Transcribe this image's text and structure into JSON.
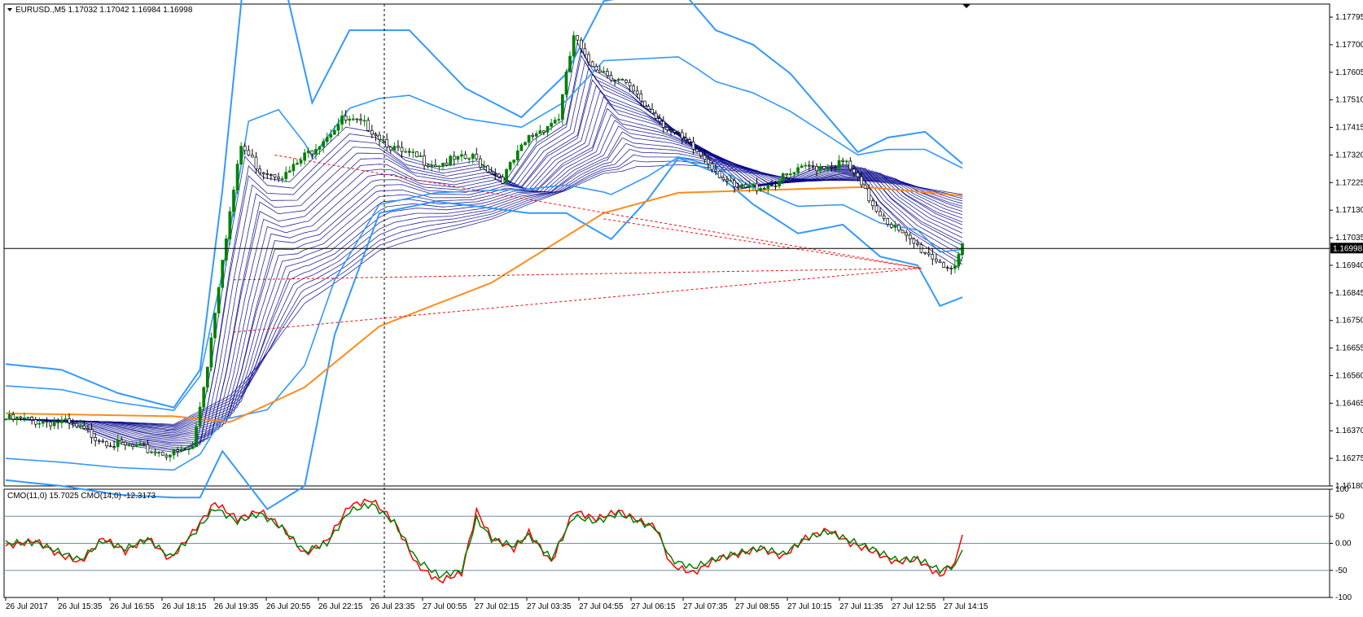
{
  "window": {
    "header": "EURUSD.,M5  1.17032 1.17042 1.16984 1.16998",
    "sub_header": "CMO(11,0) 15.7025  CMO(14,0) -12.3173"
  },
  "colors": {
    "background": "#ffffff",
    "grid_frame": "#000000",
    "bollinger": "#3399ff",
    "ribbon": "#00008b",
    "slow_ma": "#ff8c1a",
    "candle_up": "#008000",
    "candle_down": "#000000",
    "cmo_fast": "#ff0000",
    "cmo_slow": "#008000",
    "level_line": "#6b8fb3",
    "trend_dashed": "#ff0000",
    "price_tag_bg": "#000000",
    "price_tag_fg": "#ffffff"
  },
  "chart_data": [
    {
      "type": "candlestick",
      "symbol": "EURUSD.",
      "timeframe": "M5",
      "ohlc_last": {
        "open": 1.17032,
        "high": 1.17042,
        "low": 1.16984,
        "close": 1.16998
      },
      "current_price_label": "1.16998",
      "ylim": [
        1.1618,
        1.1784
      ],
      "y_ticks": [
        "1.17795",
        "1.17700",
        "1.17605",
        "1.17510",
        "1.17415",
        "1.17320",
        "1.17225",
        "1.17130",
        "1.17035",
        "1.16940",
        "1.16845",
        "1.16750",
        "1.16655",
        "1.16560",
        "1.16465",
        "1.16370",
        "1.16275",
        "1.16180"
      ],
      "y_tick_values": [
        1.17795,
        1.177,
        1.17605,
        1.1751,
        1.17415,
        1.1732,
        1.17225,
        1.1713,
        1.17035,
        1.1694,
        1.16845,
        1.1675,
        1.16655,
        1.1656,
        1.16465,
        1.1637,
        1.16275,
        1.1618
      ],
      "x_ticks": [
        "26 Jul 2017",
        "26 Jul 15:35",
        "26 Jul 16:55",
        "26 Jul 18:15",
        "26 Jul 19:35",
        "26 Jul 20:55",
        "26 Jul 22:15",
        "26 Jul 23:35",
        "27 Jul 00:55",
        "27 Jul 02:15",
        "27 Jul 03:35",
        "27 Jul 04:55",
        "27 Jul 06:15",
        "27 Jul 07:35",
        "27 Jul 08:55",
        "27 Jul 10:15",
        "27 Jul 11:35",
        "27 Jul 12:55",
        "27 Jul 14:15"
      ],
      "candle_key_closes": [
        [
          0,
          1.1641
        ],
        [
          15,
          1.164
        ],
        [
          30,
          1.1632
        ],
        [
          45,
          1.1629
        ],
        [
          50,
          1.1631
        ],
        [
          54,
          1.166
        ],
        [
          58,
          1.1697
        ],
        [
          63,
          1.1735
        ],
        [
          68,
          1.1727
        ],
        [
          75,
          1.1725
        ],
        [
          82,
          1.1734
        ],
        [
          90,
          1.1744
        ],
        [
          97,
          1.1742
        ],
        [
          105,
          1.1733
        ],
        [
          115,
          1.1729
        ],
        [
          125,
          1.1731
        ],
        [
          133,
          1.1724
        ],
        [
          140,
          1.1738
        ],
        [
          148,
          1.1745
        ],
        [
          152,
          1.1773
        ],
        [
          155,
          1.1765
        ],
        [
          160,
          1.1761
        ],
        [
          165,
          1.1757
        ],
        [
          172,
          1.1748
        ],
        [
          180,
          1.1738
        ],
        [
          188,
          1.173
        ],
        [
          195,
          1.172
        ],
        [
          205,
          1.1722
        ],
        [
          215,
          1.1728
        ],
        [
          225,
          1.1729
        ],
        [
          232,
          1.1715
        ],
        [
          240,
          1.1704
        ],
        [
          248,
          1.1697
        ],
        [
          254,
          1.1692
        ],
        [
          256,
          1.17
        ]
      ],
      "bollinger_upper_keys": [
        [
          0,
          1.166
        ],
        [
          15,
          1.1658
        ],
        [
          30,
          1.165
        ],
        [
          45,
          1.1645
        ],
        [
          52,
          1.1658
        ],
        [
          58,
          1.172
        ],
        [
          65,
          1.181
        ],
        [
          73,
          1.18
        ],
        [
          82,
          1.175
        ],
        [
          92,
          1.1775
        ],
        [
          108,
          1.1775
        ],
        [
          123,
          1.1755
        ],
        [
          138,
          1.1745
        ],
        [
          150,
          1.176
        ],
        [
          160,
          1.1785
        ],
        [
          180,
          1.179
        ],
        [
          190,
          1.1775
        ],
        [
          200,
          1.177
        ],
        [
          210,
          1.176
        ],
        [
          220,
          1.1745
        ],
        [
          228,
          1.1733
        ],
        [
          236,
          1.1738
        ],
        [
          246,
          1.174
        ],
        [
          256,
          1.1729
        ]
      ],
      "bollinger_lower_keys": [
        [
          0,
          1.162
        ],
        [
          15,
          1.1618
        ],
        [
          30,
          1.1615
        ],
        [
          45,
          1.1614
        ],
        [
          52,
          1.1614
        ],
        [
          58,
          1.163
        ],
        [
          70,
          1.161
        ],
        [
          80,
          1.1618
        ],
        [
          88,
          1.167
        ],
        [
          100,
          1.1712
        ],
        [
          115,
          1.1716
        ],
        [
          128,
          1.1714
        ],
        [
          140,
          1.1712
        ],
        [
          150,
          1.1712
        ],
        [
          162,
          1.1703
        ],
        [
          172,
          1.1717
        ],
        [
          180,
          1.1731
        ],
        [
          190,
          1.1726
        ],
        [
          200,
          1.1715
        ],
        [
          212,
          1.1705
        ],
        [
          224,
          1.1708
        ],
        [
          234,
          1.1697
        ],
        [
          244,
          1.1694
        ],
        [
          250,
          1.168
        ],
        [
          256,
          1.1683
        ]
      ],
      "slow_ma_keys": [
        [
          0,
          1.1643
        ],
        [
          45,
          1.1642
        ],
        [
          60,
          1.164
        ],
        [
          80,
          1.1652
        ],
        [
          100,
          1.1673
        ],
        [
          130,
          1.1688
        ],
        [
          160,
          1.1712
        ],
        [
          180,
          1.1719
        ],
        [
          205,
          1.172
        ],
        [
          230,
          1.1721
        ],
        [
          256,
          1.1718
        ]
      ],
      "ribbon_mid_keys": [
        [
          0,
          1.1639
        ],
        [
          45,
          1.1637
        ],
        [
          60,
          1.166
        ],
        [
          80,
          1.1705
        ],
        [
          100,
          1.1722
        ],
        [
          130,
          1.173
        ],
        [
          160,
          1.1738
        ],
        [
          185,
          1.1735
        ],
        [
          210,
          1.1728
        ],
        [
          235,
          1.1724
        ],
        [
          256,
          1.172
        ]
      ],
      "trend_dashed_lines": [
        [
          [
            72,
            1.1732
          ],
          [
            245,
            1.1693
          ]
        ],
        [
          [
            61,
            1.1689
          ],
          [
            245,
            1.1693
          ]
        ],
        [
          [
            61,
            1.1671
          ],
          [
            245,
            1.1693
          ]
        ],
        [
          [
            160,
            1.171
          ],
          [
            245,
            1.1693
          ]
        ]
      ]
    },
    {
      "type": "line",
      "name": "CMO",
      "ylim": [
        -100,
        100
      ],
      "y_ticks": [
        "100",
        "50",
        "0.00",
        "-50",
        "-100"
      ],
      "y_tick_values": [
        100,
        50,
        0,
        -50,
        -100
      ],
      "levels": [
        50,
        0,
        -50
      ],
      "series": [
        {
          "name": "CMO(11,0)",
          "last_value": 15.7025,
          "keys": [
            [
              0,
              -5
            ],
            [
              8,
              5
            ],
            [
              14,
              -20
            ],
            [
              20,
              -35
            ],
            [
              26,
              10
            ],
            [
              32,
              -15
            ],
            [
              38,
              10
            ],
            [
              44,
              -30
            ],
            [
              50,
              20
            ],
            [
              56,
              75
            ],
            [
              62,
              45
            ],
            [
              68,
              60
            ],
            [
              74,
              30
            ],
            [
              80,
              -20
            ],
            [
              86,
              5
            ],
            [
              92,
              70
            ],
            [
              98,
              80
            ],
            [
              104,
              40
            ],
            [
              110,
              -40
            ],
            [
              116,
              -70
            ],
            [
              122,
              -55
            ],
            [
              126,
              60
            ],
            [
              130,
              10
            ],
            [
              136,
              -10
            ],
            [
              140,
              20
            ],
            [
              146,
              -35
            ],
            [
              152,
              60
            ],
            [
              158,
              45
            ],
            [
              164,
              60
            ],
            [
              170,
              40
            ],
            [
              174,
              30
            ],
            [
              178,
              -40
            ],
            [
              184,
              -55
            ],
            [
              190,
              -30
            ],
            [
              196,
              -20
            ],
            [
              202,
              -10
            ],
            [
              208,
              -25
            ],
            [
              214,
              10
            ],
            [
              220,
              25
            ],
            [
              226,
              0
            ],
            [
              232,
              -15
            ],
            [
              238,
              -35
            ],
            [
              244,
              -30
            ],
            [
              250,
              -60
            ],
            [
              254,
              -35
            ],
            [
              256,
              15.7025
            ]
          ]
        },
        {
          "name": "CMO(14,0)",
          "last_value": -12.3173,
          "keys": [
            [
              0,
              0
            ],
            [
              8,
              2
            ],
            [
              14,
              -15
            ],
            [
              20,
              -30
            ],
            [
              26,
              5
            ],
            [
              32,
              -10
            ],
            [
              38,
              8
            ],
            [
              44,
              -25
            ],
            [
              50,
              15
            ],
            [
              56,
              65
            ],
            [
              62,
              40
            ],
            [
              68,
              55
            ],
            [
              74,
              28
            ],
            [
              80,
              -15
            ],
            [
              86,
              0
            ],
            [
              92,
              60
            ],
            [
              98,
              72
            ],
            [
              104,
              38
            ],
            [
              110,
              -30
            ],
            [
              116,
              -60
            ],
            [
              122,
              -50
            ],
            [
              126,
              45
            ],
            [
              130,
              8
            ],
            [
              136,
              -5
            ],
            [
              140,
              15
            ],
            [
              146,
              -28
            ],
            [
              152,
              50
            ],
            [
              158,
              40
            ],
            [
              164,
              55
            ],
            [
              170,
              38
            ],
            [
              174,
              28
            ],
            [
              178,
              -30
            ],
            [
              184,
              -45
            ],
            [
              190,
              -28
            ],
            [
              196,
              -18
            ],
            [
              202,
              -8
            ],
            [
              208,
              -20
            ],
            [
              214,
              8
            ],
            [
              220,
              22
            ],
            [
              226,
              5
            ],
            [
              232,
              -10
            ],
            [
              238,
              -30
            ],
            [
              244,
              -28
            ],
            [
              250,
              -50
            ],
            [
              254,
              -40
            ],
            [
              256,
              -12.3173
            ]
          ]
        }
      ]
    }
  ]
}
